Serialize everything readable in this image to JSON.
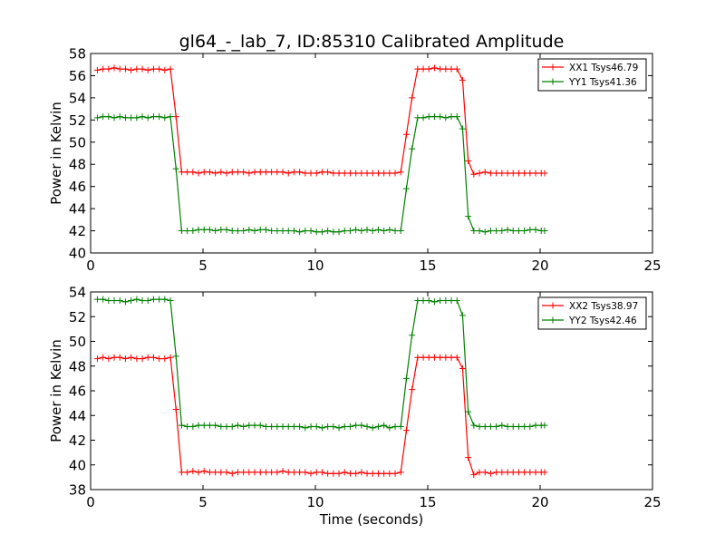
{
  "chart_data": [
    {
      "type": "line",
      "title": "gl64_-_lab_7, ID:85310 Calibrated Amplitude",
      "xlabel": "",
      "ylabel": "Power in Kelvin",
      "xlim": [
        0,
        25
      ],
      "ylim": [
        40,
        58
      ],
      "xticks": [
        0,
        5,
        10,
        15,
        20,
        25
      ],
      "yticks": [
        40,
        42,
        44,
        46,
        48,
        50,
        52,
        54,
        56,
        58
      ],
      "grid": false,
      "legend_position": "top-right",
      "series": [
        {
          "name": "XX1 Tsys46.79",
          "color": "#ff0000",
          "x": [
            0.3,
            0.55,
            0.8,
            1.05,
            1.3,
            1.55,
            1.8,
            2.05,
            2.3,
            2.55,
            2.8,
            3.05,
            3.3,
            3.55,
            3.8,
            4.05,
            4.3,
            4.55,
            4.8,
            5.05,
            5.3,
            5.55,
            5.8,
            6.05,
            6.3,
            6.55,
            6.8,
            7.05,
            7.3,
            7.55,
            7.8,
            8.05,
            8.3,
            8.55,
            8.8,
            9.05,
            9.3,
            9.55,
            9.8,
            10.05,
            10.3,
            10.55,
            10.8,
            11.05,
            11.3,
            11.55,
            11.8,
            12.05,
            12.3,
            12.55,
            12.8,
            13.05,
            13.3,
            13.55,
            13.8,
            14.05,
            14.3,
            14.55,
            14.8,
            15.05,
            15.3,
            15.55,
            15.8,
            16.05,
            16.3,
            16.55,
            16.8,
            17.05,
            17.3,
            17.55,
            17.8,
            18.05,
            18.3,
            18.55,
            18.8,
            19.05,
            19.3,
            19.55,
            19.8,
            20.05,
            20.2
          ],
          "y": [
            56.5,
            56.6,
            56.6,
            56.7,
            56.6,
            56.6,
            56.5,
            56.6,
            56.6,
            56.5,
            56.6,
            56.6,
            56.5,
            56.6,
            52.3,
            47.3,
            47.3,
            47.3,
            47.2,
            47.3,
            47.3,
            47.2,
            47.3,
            47.2,
            47.3,
            47.3,
            47.3,
            47.2,
            47.3,
            47.3,
            47.3,
            47.3,
            47.3,
            47.3,
            47.2,
            47.3,
            47.3,
            47.2,
            47.2,
            47.2,
            47.3,
            47.3,
            47.2,
            47.2,
            47.2,
            47.2,
            47.2,
            47.2,
            47.2,
            47.2,
            47.2,
            47.2,
            47.2,
            47.2,
            47.3,
            50.7,
            54.0,
            56.6,
            56.6,
            56.6,
            56.7,
            56.6,
            56.6,
            56.6,
            56.6,
            55.6,
            48.3,
            47.1,
            47.2,
            47.3,
            47.2,
            47.2,
            47.2,
            47.2,
            47.2,
            47.2,
            47.2,
            47.2,
            47.2,
            47.2,
            47.2
          ]
        },
        {
          "name": "YY1 Tsys41.36",
          "color": "#008000",
          "x": [
            0.3,
            0.55,
            0.8,
            1.05,
            1.3,
            1.55,
            1.8,
            2.05,
            2.3,
            2.55,
            2.8,
            3.05,
            3.3,
            3.55,
            3.8,
            4.05,
            4.3,
            4.55,
            4.8,
            5.05,
            5.3,
            5.55,
            5.8,
            6.05,
            6.3,
            6.55,
            6.8,
            7.05,
            7.3,
            7.55,
            7.8,
            8.05,
            8.3,
            8.55,
            8.8,
            9.05,
            9.3,
            9.55,
            9.8,
            10.05,
            10.3,
            10.55,
            10.8,
            11.05,
            11.3,
            11.55,
            11.8,
            12.05,
            12.3,
            12.55,
            12.8,
            13.05,
            13.3,
            13.55,
            13.8,
            14.05,
            14.3,
            14.55,
            14.8,
            15.05,
            15.3,
            15.55,
            15.8,
            16.05,
            16.3,
            16.55,
            16.8,
            17.05,
            17.3,
            17.55,
            17.8,
            18.05,
            18.3,
            18.55,
            18.8,
            19.05,
            19.3,
            19.55,
            19.8,
            20.05,
            20.2
          ],
          "y": [
            52.2,
            52.3,
            52.3,
            52.2,
            52.3,
            52.2,
            52.2,
            52.2,
            52.3,
            52.2,
            52.3,
            52.3,
            52.2,
            52.3,
            47.6,
            42.0,
            42.0,
            42.0,
            42.1,
            42.1,
            42.1,
            42.0,
            42.1,
            42.1,
            42.0,
            42.0,
            42.0,
            42.1,
            42.0,
            42.1,
            42.1,
            42.0,
            42.0,
            42.0,
            42.0,
            42.0,
            41.9,
            42.0,
            42.0,
            41.9,
            41.9,
            42.0,
            41.9,
            41.9,
            42.0,
            42.0,
            42.1,
            42.0,
            42.1,
            42.0,
            42.1,
            42.0,
            42.1,
            42.0,
            42.0,
            45.8,
            49.4,
            52.2,
            52.2,
            52.3,
            52.3,
            52.3,
            52.2,
            52.3,
            52.3,
            51.2,
            43.3,
            42.0,
            42.0,
            41.9,
            42.0,
            42.0,
            42.0,
            42.1,
            42.0,
            42.0,
            42.0,
            42.1,
            42.1,
            42.0,
            42.0
          ]
        }
      ]
    },
    {
      "type": "line",
      "title": "",
      "xlabel": "Time (seconds)",
      "ylabel": "Power in Kelvin",
      "xlim": [
        0,
        25
      ],
      "ylim": [
        38,
        54
      ],
      "xticks": [
        0,
        5,
        10,
        15,
        20,
        25
      ],
      "yticks": [
        38,
        40,
        42,
        44,
        46,
        48,
        50,
        52,
        54
      ],
      "grid": false,
      "legend_position": "top-right",
      "series": [
        {
          "name": "XX2 Tsys38.97",
          "color": "#ff0000",
          "x": [
            0.3,
            0.55,
            0.8,
            1.05,
            1.3,
            1.55,
            1.8,
            2.05,
            2.3,
            2.55,
            2.8,
            3.05,
            3.3,
            3.55,
            3.8,
            4.05,
            4.3,
            4.55,
            4.8,
            5.05,
            5.3,
            5.55,
            5.8,
            6.05,
            6.3,
            6.55,
            6.8,
            7.05,
            7.3,
            7.55,
            7.8,
            8.05,
            8.3,
            8.55,
            8.8,
            9.05,
            9.3,
            9.55,
            9.8,
            10.05,
            10.3,
            10.55,
            10.8,
            11.05,
            11.3,
            11.55,
            11.8,
            12.05,
            12.3,
            12.55,
            12.8,
            13.05,
            13.3,
            13.55,
            13.8,
            14.05,
            14.3,
            14.55,
            14.8,
            15.05,
            15.3,
            15.55,
            15.8,
            16.05,
            16.3,
            16.55,
            16.8,
            17.05,
            17.3,
            17.55,
            17.8,
            18.05,
            18.3,
            18.55,
            18.8,
            19.05,
            19.3,
            19.55,
            19.8,
            20.05,
            20.2
          ],
          "y": [
            48.6,
            48.7,
            48.6,
            48.7,
            48.7,
            48.6,
            48.7,
            48.6,
            48.6,
            48.7,
            48.7,
            48.6,
            48.6,
            48.7,
            44.5,
            39.4,
            39.4,
            39.5,
            39.4,
            39.5,
            39.4,
            39.4,
            39.4,
            39.4,
            39.3,
            39.4,
            39.4,
            39.4,
            39.4,
            39.4,
            39.4,
            39.4,
            39.4,
            39.5,
            39.4,
            39.4,
            39.4,
            39.4,
            39.3,
            39.4,
            39.4,
            39.3,
            39.3,
            39.3,
            39.4,
            39.3,
            39.3,
            39.4,
            39.3,
            39.3,
            39.3,
            39.3,
            39.3,
            39.3,
            39.4,
            42.8,
            46.1,
            48.7,
            48.7,
            48.7,
            48.7,
            48.7,
            48.7,
            48.7,
            48.7,
            47.8,
            40.6,
            39.2,
            39.4,
            39.4,
            39.3,
            39.4,
            39.4,
            39.4,
            39.4,
            39.4,
            39.4,
            39.4,
            39.4,
            39.4,
            39.4
          ]
        },
        {
          "name": "YY2 Tsys42.46",
          "color": "#008000",
          "x": [
            0.3,
            0.55,
            0.8,
            1.05,
            1.3,
            1.55,
            1.8,
            2.05,
            2.3,
            2.55,
            2.8,
            3.05,
            3.3,
            3.55,
            3.8,
            4.05,
            4.3,
            4.55,
            4.8,
            5.05,
            5.3,
            5.55,
            5.8,
            6.05,
            6.3,
            6.55,
            6.8,
            7.05,
            7.3,
            7.55,
            7.8,
            8.05,
            8.3,
            8.55,
            8.8,
            9.05,
            9.3,
            9.55,
            9.8,
            10.05,
            10.3,
            10.55,
            10.8,
            11.05,
            11.3,
            11.55,
            11.8,
            12.05,
            12.3,
            12.55,
            12.8,
            13.05,
            13.3,
            13.55,
            13.8,
            14.05,
            14.3,
            14.55,
            14.8,
            15.05,
            15.3,
            15.55,
            15.8,
            16.05,
            16.3,
            16.55,
            16.8,
            17.05,
            17.3,
            17.55,
            17.8,
            18.05,
            18.3,
            18.55,
            18.8,
            19.05,
            19.3,
            19.55,
            19.8,
            20.05,
            20.2
          ],
          "y": [
            53.4,
            53.4,
            53.3,
            53.3,
            53.3,
            53.2,
            53.3,
            53.4,
            53.3,
            53.3,
            53.4,
            53.4,
            53.4,
            53.3,
            48.8,
            43.2,
            43.1,
            43.1,
            43.2,
            43.2,
            43.2,
            43.2,
            43.1,
            43.1,
            43.1,
            43.2,
            43.1,
            43.2,
            43.2,
            43.2,
            43.1,
            43.1,
            43.1,
            43.1,
            43.1,
            43.1,
            43.1,
            43.0,
            43.1,
            43.1,
            43.0,
            43.1,
            43.1,
            43.0,
            43.1,
            43.1,
            43.2,
            43.2,
            43.1,
            43.0,
            43.1,
            43.2,
            43.0,
            43.1,
            43.1,
            47.0,
            50.5,
            53.3,
            53.3,
            53.3,
            53.2,
            53.3,
            53.3,
            53.3,
            53.3,
            52.1,
            44.3,
            43.2,
            43.1,
            43.1,
            43.1,
            43.1,
            43.2,
            43.1,
            43.1,
            43.1,
            43.1,
            43.1,
            43.2,
            43.2,
            43.2
          ]
        }
      ]
    }
  ]
}
